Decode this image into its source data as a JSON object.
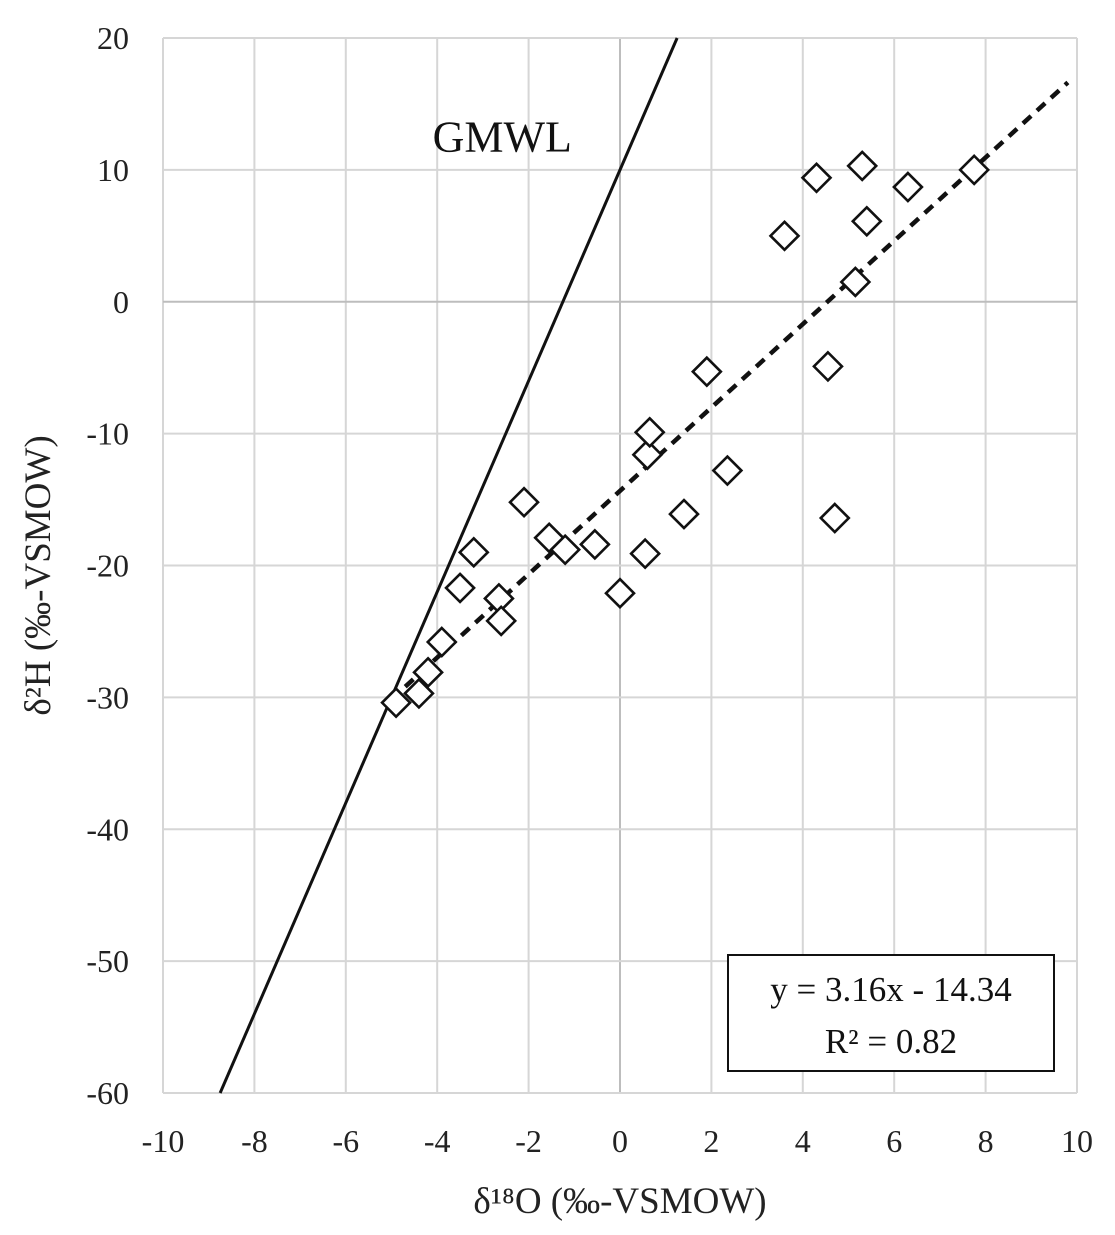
{
  "chart_data": {
    "type": "scatter",
    "xlabel": "δ¹⁸O (‰-VSMOW)",
    "ylabel": "δ²H (‰-VSMOW)",
    "xlim": [
      -10,
      10
    ],
    "ylim": [
      -60,
      20
    ],
    "xticks": [
      -10,
      -8,
      -6,
      -4,
      -2,
      0,
      2,
      4,
      6,
      8,
      10
    ],
    "yticks": [
      -60,
      -50,
      -40,
      -30,
      -20,
      -10,
      0,
      10,
      20
    ],
    "xtick_labels": [
      "-10",
      "-8",
      "-6",
      "-4",
      "-2",
      "0",
      "2",
      "4",
      "6",
      "8",
      "10"
    ],
    "ytick_labels": [
      "-60",
      "-50",
      "-40",
      "-30",
      "-20",
      "-10",
      "0",
      "10",
      "20"
    ],
    "grid": true,
    "marker": "open-diamond",
    "points": [
      [
        -4.9,
        -30.4
      ],
      [
        -4.4,
        -29.7
      ],
      [
        -4.2,
        -28.1
      ],
      [
        -3.9,
        -25.8
      ],
      [
        -3.5,
        -21.7
      ],
      [
        -3.2,
        -19.0
      ],
      [
        -2.65,
        -22.5
      ],
      [
        -2.6,
        -24.2
      ],
      [
        -2.1,
        -15.2
      ],
      [
        -1.55,
        -17.9
      ],
      [
        -1.2,
        -18.8
      ],
      [
        -0.55,
        -18.4
      ],
      [
        0.0,
        -22.1
      ],
      [
        0.55,
        -19.1
      ],
      [
        0.6,
        -11.6
      ],
      [
        0.65,
        -9.9
      ],
      [
        1.4,
        -16.1
      ],
      [
        1.9,
        -5.3
      ],
      [
        2.35,
        -12.8
      ],
      [
        3.6,
        5.0
      ],
      [
        4.3,
        9.4
      ],
      [
        4.55,
        -4.9
      ],
      [
        4.7,
        -16.4
      ],
      [
        5.15,
        1.5
      ],
      [
        5.3,
        10.3
      ],
      [
        5.4,
        6.1
      ],
      [
        6.3,
        8.7
      ],
      [
        7.75,
        10.0
      ]
    ],
    "gmwl": {
      "label": "GMWL",
      "slope": 8,
      "intercept": 10
    },
    "fit": {
      "slope": 3.16,
      "intercept": -14.34,
      "x_range": [
        -4.7,
        9.8
      ],
      "equation": "y = 3.16x - 14.34",
      "r2": "R² = 0.82"
    }
  }
}
